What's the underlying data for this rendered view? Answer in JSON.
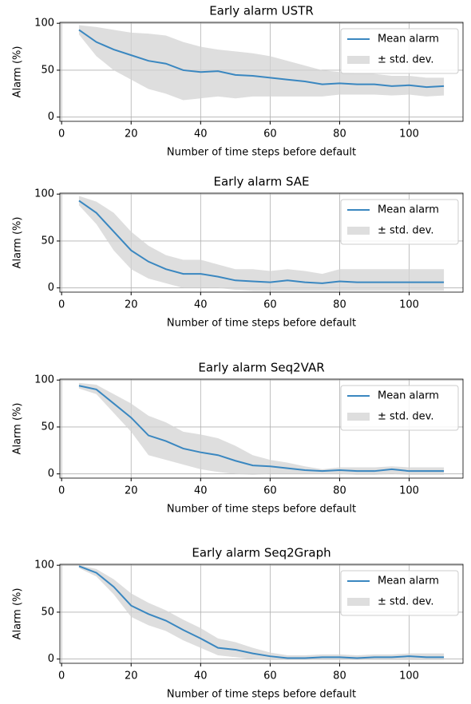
{
  "chart_data": [
    {
      "type": "line",
      "title": "Early alarm USTR",
      "xlabel": "Number of time steps before default",
      "ylabel": "Alarm (%)",
      "x": [
        5,
        10,
        15,
        20,
        25,
        30,
        35,
        40,
        45,
        50,
        55,
        60,
        65,
        70,
        75,
        80,
        85,
        90,
        95,
        100,
        105,
        110
      ],
      "series": [
        {
          "name": "Mean alarm",
          "color": "#3a87c0",
          "values": [
            93,
            80,
            72,
            66,
            60,
            57,
            50,
            48,
            49,
            45,
            44,
            42,
            40,
            38,
            35,
            36,
            35,
            35,
            33,
            34,
            32,
            33
          ]
        }
      ],
      "band": {
        "name": "± std. dev.",
        "color": "#d3d3d3",
        "upper": [
          98,
          96,
          93,
          90,
          89,
          87,
          80,
          75,
          72,
          70,
          68,
          65,
          60,
          55,
          50,
          48,
          47,
          46,
          44,
          44,
          42,
          42
        ],
        "lower": [
          88,
          65,
          50,
          40,
          30,
          25,
          18,
          20,
          22,
          20,
          22,
          22,
          22,
          22,
          22,
          24,
          24,
          24,
          23,
          24,
          22,
          23
        ]
      },
      "xlim": [
        -0.5,
        115.5
      ],
      "ylim": [
        -4.5,
        101
      ],
      "xticks": [
        0,
        20,
        40,
        60,
        80,
        100
      ],
      "yticks": [
        0,
        50,
        100
      ],
      "grid": true,
      "legend": "upper right"
    },
    {
      "type": "line",
      "title": "Early alarm SAE",
      "xlabel": "Number of time steps before default",
      "ylabel": "Alarm (%)",
      "x": [
        5,
        10,
        15,
        20,
        25,
        30,
        35,
        40,
        45,
        50,
        55,
        60,
        65,
        70,
        75,
        80,
        85,
        90,
        95,
        100,
        105,
        110
      ],
      "series": [
        {
          "name": "Mean alarm",
          "color": "#3a87c0",
          "values": [
            93,
            80,
            60,
            40,
            28,
            20,
            15,
            15,
            12,
            8,
            7,
            6,
            8,
            6,
            5,
            7,
            6,
            6,
            6,
            6,
            6,
            6
          ]
        }
      ],
      "band": {
        "name": "± std. dev.",
        "color": "#d3d3d3",
        "upper": [
          98,
          92,
          80,
          60,
          45,
          35,
          30,
          30,
          25,
          20,
          20,
          18,
          20,
          18,
          15,
          20,
          20,
          20,
          20,
          20,
          20,
          20
        ],
        "lower": [
          88,
          68,
          40,
          20,
          10,
          5,
          0,
          0,
          0,
          -2,
          -3,
          -3,
          -3,
          -3,
          -3,
          -3,
          -3,
          -3,
          -3,
          -3,
          -3,
          -3
        ]
      },
      "xlim": [
        -0.5,
        115.5
      ],
      "ylim": [
        -4.5,
        101
      ],
      "xticks": [
        0,
        20,
        40,
        60,
        80,
        100
      ],
      "yticks": [
        0,
        50,
        100
      ],
      "grid": true,
      "legend": "upper right"
    },
    {
      "type": "line",
      "title": "Early alarm Seq2VAR",
      "xlabel": "Number of time steps before default",
      "ylabel": "Alarm (%)",
      "x": [
        5,
        10,
        15,
        20,
        25,
        30,
        35,
        40,
        45,
        50,
        55,
        60,
        65,
        70,
        75,
        80,
        85,
        90,
        95,
        100,
        105,
        110
      ],
      "series": [
        {
          "name": "Mean alarm",
          "color": "#3a87c0",
          "values": [
            94,
            90,
            75,
            60,
            41,
            35,
            27,
            23,
            20,
            14,
            9,
            8,
            6,
            4,
            3,
            4,
            3,
            3,
            5,
            3,
            3,
            3
          ]
        }
      ],
      "band": {
        "name": "± std. dev.",
        "color": "#d3d3d3",
        "upper": [
          97,
          95,
          85,
          75,
          62,
          55,
          45,
          42,
          38,
          30,
          20,
          15,
          12,
          8,
          5,
          7,
          7,
          7,
          8,
          7,
          7,
          7
        ],
        "lower": [
          91,
          85,
          65,
          45,
          20,
          15,
          10,
          5,
          2,
          0,
          -1,
          0,
          0,
          0,
          0,
          0,
          -1,
          -1,
          0,
          -1,
          -1,
          -1
        ]
      },
      "xlim": [
        -0.5,
        115.5
      ],
      "ylim": [
        -4.5,
        101
      ],
      "xticks": [
        0,
        20,
        40,
        60,
        80,
        100
      ],
      "yticks": [
        0,
        50,
        100
      ],
      "grid": true,
      "legend": "upper right"
    },
    {
      "type": "line",
      "title": "Early alarm Seq2Graph",
      "xlabel": "Number of time steps before default",
      "ylabel": "Alarm (%)",
      "x": [
        5,
        10,
        15,
        20,
        25,
        30,
        35,
        40,
        45,
        50,
        55,
        60,
        65,
        70,
        75,
        80,
        85,
        90,
        95,
        100,
        105,
        110
      ],
      "series": [
        {
          "name": "Mean alarm",
          "color": "#3a87c0",
          "values": [
            99,
            92,
            77,
            57,
            48,
            41,
            31,
            22,
            12,
            10,
            6,
            3,
            1,
            1,
            2,
            2,
            1,
            2,
            2,
            3,
            2,
            2
          ]
        }
      ],
      "band": {
        "name": "± std. dev.",
        "color": "#d3d3d3",
        "upper": [
          100,
          96,
          85,
          70,
          60,
          52,
          42,
          33,
          22,
          18,
          12,
          7,
          4,
          4,
          5,
          5,
          4,
          5,
          5,
          6,
          6,
          6
        ],
        "lower": [
          97,
          88,
          69,
          45,
          36,
          30,
          20,
          12,
          4,
          2,
          0,
          -1,
          -1,
          -1,
          -1,
          -1,
          -1,
          -1,
          -1,
          -1,
          -1,
          -1
        ]
      },
      "xlim": [
        -0.5,
        115.5
      ],
      "ylim": [
        -4.5,
        101
      ],
      "xticks": [
        0,
        20,
        40,
        60,
        80,
        100
      ],
      "yticks": [
        0,
        50,
        100
      ],
      "grid": true,
      "legend": "upper right"
    }
  ]
}
